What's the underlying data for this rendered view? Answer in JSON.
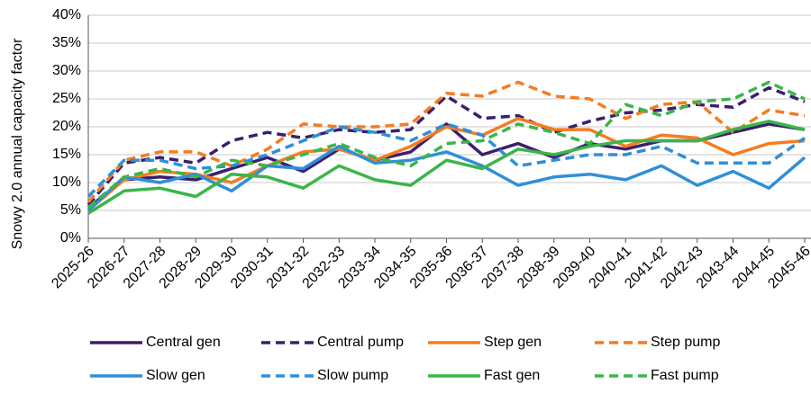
{
  "chart_data": {
    "type": "line",
    "y_label": "Snowy 2.0 annual capacity factor",
    "categories": [
      "2025-26",
      "2026-27",
      "2027-28",
      "2028-29",
      "2029-30",
      "2030-31",
      "2031-32",
      "2032-33",
      "2033-34",
      "2034-35",
      "2035-36",
      "2036-37",
      "2037-38",
      "2038-39",
      "2039-40",
      "2040-41",
      "2041-42",
      "2042-43",
      "2043-44",
      "2044-45",
      "2045-46"
    ],
    "ylim": [
      0,
      40
    ],
    "yticks": [
      {
        "value": 0,
        "label": "0%"
      },
      {
        "value": 5,
        "label": "5%"
      },
      {
        "value": 10,
        "label": "10%"
      },
      {
        "value": 15,
        "label": "15%"
      },
      {
        "value": 20,
        "label": "20%"
      },
      {
        "value": 25,
        "label": "25%"
      },
      {
        "value": 30,
        "label": "30%"
      },
      {
        "value": 35,
        "label": "35%"
      },
      {
        "value": 40,
        "label": "40%"
      }
    ],
    "grid": true,
    "legend": "bottom",
    "series": [
      {
        "name": "Central gen",
        "color": "#3b1f6e",
        "dashed": false,
        "values": [
          5.5,
          10.5,
          11,
          10.5,
          12.5,
          14.5,
          12,
          16,
          14,
          15.5,
          20.5,
          15,
          17,
          14.5,
          17,
          16,
          17.5,
          17.5,
          19,
          20.5,
          19.5
        ]
      },
      {
        "name": "Central pump",
        "color": "#3b1f6e",
        "dashed": true,
        "values": [
          6,
          13.5,
          14.5,
          13.5,
          17.5,
          19,
          18,
          19.5,
          19,
          19.5,
          25.5,
          21.5,
          22,
          19,
          21,
          22.5,
          23,
          24,
          23.5,
          27,
          24.5
        ]
      },
      {
        "name": "Step gen",
        "color": "#f57c20",
        "dashed": false,
        "values": [
          5,
          10.5,
          12,
          11.5,
          10,
          13,
          15.5,
          16,
          14,
          16.5,
          20,
          18.5,
          21.5,
          19.5,
          19.5,
          16.5,
          18.5,
          18,
          15,
          17,
          17.5
        ]
      },
      {
        "name": "Step pump",
        "color": "#f57c20",
        "dashed": true,
        "values": [
          6.5,
          14,
          15.5,
          15.5,
          13,
          16,
          20.5,
          20,
          20,
          20.5,
          26,
          25.5,
          28,
          25.5,
          25,
          21.5,
          24,
          24.5,
          19,
          23,
          22
        ]
      },
      {
        "name": "Slow gen",
        "color": "#2e8fd9",
        "dashed": false,
        "values": [
          5,
          11,
          10,
          11.5,
          8.5,
          13,
          12.5,
          16.5,
          13.5,
          14,
          15.5,
          13,
          9.5,
          11,
          11.5,
          10.5,
          13,
          9.5,
          12,
          9,
          14.5
        ]
      },
      {
        "name": "Slow pump",
        "color": "#2e8fd9",
        "dashed": true,
        "values": [
          7.5,
          14,
          14,
          12.5,
          13,
          15,
          17.5,
          20,
          19,
          17.5,
          20.5,
          18.5,
          13,
          14,
          15,
          15,
          16.5,
          13.5,
          13.5,
          13.5,
          18
        ]
      },
      {
        "name": "Fast gen",
        "color": "#3bb54a",
        "dashed": false,
        "values": [
          4.5,
          8.5,
          9,
          7.5,
          11.5,
          11,
          9,
          13,
          10.5,
          9.5,
          14,
          12.5,
          16,
          15,
          16.5,
          17.5,
          17.5,
          17.5,
          19.5,
          21,
          19.5
        ]
      },
      {
        "name": "Fast pump",
        "color": "#3bb54a",
        "dashed": true,
        "values": [
          5.5,
          11,
          12.5,
          11,
          14,
          13,
          15,
          17,
          14.5,
          13,
          17,
          17.5,
          20.5,
          19,
          17,
          24,
          22,
          24.5,
          25,
          28,
          25
        ]
      }
    ]
  }
}
